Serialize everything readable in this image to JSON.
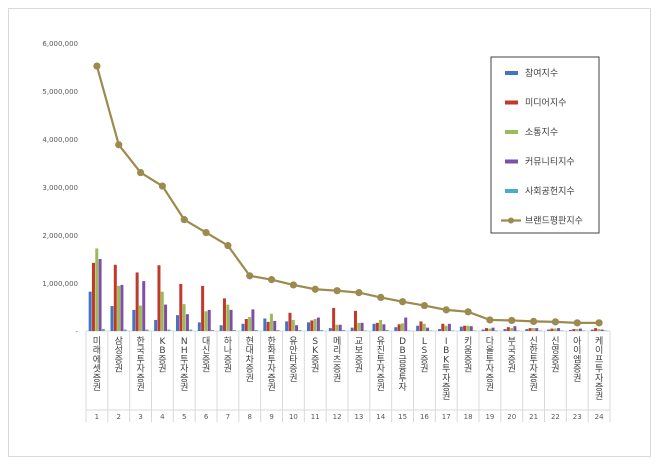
{
  "chart_data": {
    "type": "bar",
    "title": "",
    "xlabel": "",
    "ylabel": "",
    "ylim": [
      0,
      6000000
    ],
    "yticks": [
      "6,000,000",
      "5,000,000",
      "4,000,000",
      "3,000,000",
      "2,000,000",
      "1,000,000",
      "-"
    ],
    "grid": false,
    "legend_position": "top-right",
    "categories": [
      "미래에셋증권",
      "삼성증권",
      "한국투자증권",
      "KB증권",
      "NH투자증권",
      "대신증권",
      "하나증권",
      "현대차증권",
      "한화투자증권",
      "유안타증권",
      "SK증권",
      "메리츠증권",
      "교보증권",
      "유진투자증권",
      "DB금융투자",
      "LS증권",
      "IBK투자증권",
      "키움증권",
      "다올투자증권",
      "부국증권",
      "신한투자증권",
      "신영증권",
      "아이엠증권",
      "케이프투자증권"
    ],
    "ranks": [
      "1",
      "2",
      "3",
      "4",
      "5",
      "6",
      "7",
      "8",
      "9",
      "10",
      "11",
      "12",
      "13",
      "14",
      "15",
      "16",
      "17",
      "18",
      "19",
      "20",
      "21",
      "22",
      "23",
      "24"
    ],
    "series": [
      {
        "name": "참여지수",
        "color": "#4472c4",
        "values": [
          820000,
          520000,
          440000,
          230000,
          330000,
          180000,
          120000,
          150000,
          260000,
          200000,
          180000,
          60000,
          70000,
          150000,
          80000,
          110000,
          40000,
          90000,
          30000,
          40000,
          40000,
          30000,
          20000,
          30000
        ]
      },
      {
        "name": "미디어지수",
        "color": "#c0392b",
        "values": [
          1420000,
          1380000,
          1220000,
          1370000,
          980000,
          940000,
          680000,
          250000,
          190000,
          380000,
          220000,
          480000,
          420000,
          170000,
          140000,
          200000,
          150000,
          110000,
          60000,
          80000,
          60000,
          50000,
          40000,
          60000
        ]
      },
      {
        "name": "소통지수",
        "color": "#9bbb59",
        "values": [
          1720000,
          940000,
          530000,
          820000,
          560000,
          410000,
          550000,
          290000,
          360000,
          230000,
          250000,
          130000,
          170000,
          230000,
          160000,
          150000,
          110000,
          110000,
          50000,
          60000,
          60000,
          50000,
          40000,
          40000
        ]
      },
      {
        "name": "커뮤니티지수",
        "color": "#7f4fa3",
        "values": [
          1500000,
          960000,
          1040000,
          550000,
          350000,
          440000,
          440000,
          450000,
          210000,
          120000,
          280000,
          130000,
          170000,
          140000,
          280000,
          70000,
          150000,
          100000,
          70000,
          100000,
          60000,
          60000,
          50000,
          30000
        ]
      },
      {
        "name": "사회공헌지수",
        "color": "#4bacc6",
        "values": [
          40000,
          30000,
          30000,
          30000,
          30000,
          20000,
          20000,
          20000,
          20000,
          20000,
          20000,
          20000,
          10000,
          20000,
          10000,
          10000,
          10000,
          10000,
          10000,
          10000,
          10000,
          10000,
          10000,
          10000
        ]
      }
    ],
    "line_series": {
      "name": "브랜드평판지수",
      "color": "#9c8a4e",
      "values": [
        5520000,
        3880000,
        3300000,
        3020000,
        2320000,
        2050000,
        1780000,
        1150000,
        1070000,
        960000,
        870000,
        840000,
        800000,
        700000,
        610000,
        530000,
        440000,
        400000,
        230000,
        220000,
        200000,
        190000,
        170000,
        170000
      ]
    }
  }
}
